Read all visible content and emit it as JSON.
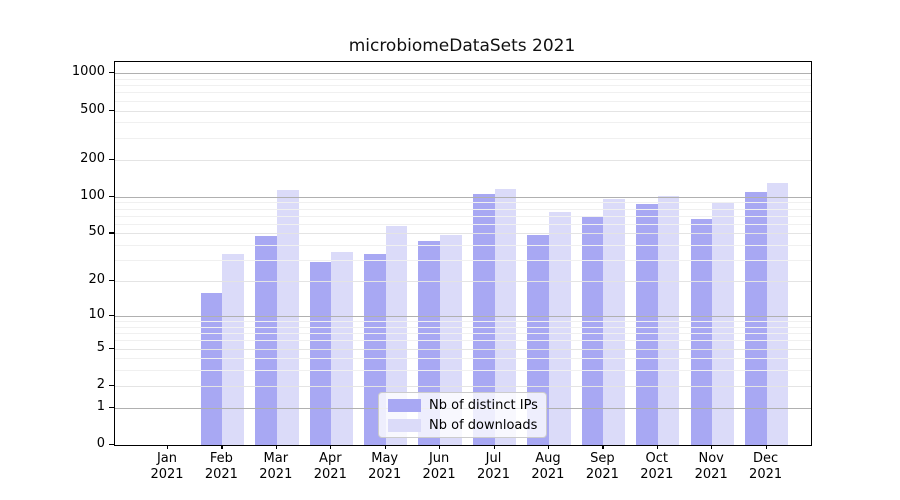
{
  "figure": {
    "title": "microbiomeDataSets 2021"
  },
  "chart_data": {
    "type": "bar",
    "title": "microbiomeDataSets 2021",
    "x_categories_line1": [
      "Jan",
      "Feb",
      "Mar",
      "Apr",
      "May",
      "Jun",
      "Jul",
      "Aug",
      "Sep",
      "Oct",
      "Nov",
      "Dec"
    ],
    "x_categories_line2": "2021",
    "series": [
      {
        "name": "Nb of distinct IPs",
        "key": "distinct-ips",
        "color": "#a8a8f3",
        "values": [
          0,
          16,
          48,
          29,
          34,
          43,
          106,
          49,
          70,
          88,
          66,
          109
        ]
      },
      {
        "name": "Nb of downloads",
        "key": "downloads",
        "color": "#dbdbf9",
        "values": [
          0,
          34,
          113,
          35,
          58,
          49,
          116,
          75,
          95,
          102,
          89,
          129
        ]
      }
    ],
    "y_axis": {
      "ticks": [
        0,
        1,
        2,
        5,
        10,
        20,
        50,
        100,
        200,
        500,
        1000
      ],
      "scale": "log1p",
      "top_value": 1232
    },
    "grid": true,
    "grid_on_top_of_bars": true,
    "legend_position": "lower center"
  },
  "colors": {
    "grid_major": "#b0b0b0",
    "grid_labeled": "#e4e4e4",
    "grid_minor": "#f0f0f0",
    "spine": "#000000",
    "legend_border": "#cccccc",
    "legend_background": "rgba(255,255,255,0.8)",
    "title_color": "#111111"
  }
}
